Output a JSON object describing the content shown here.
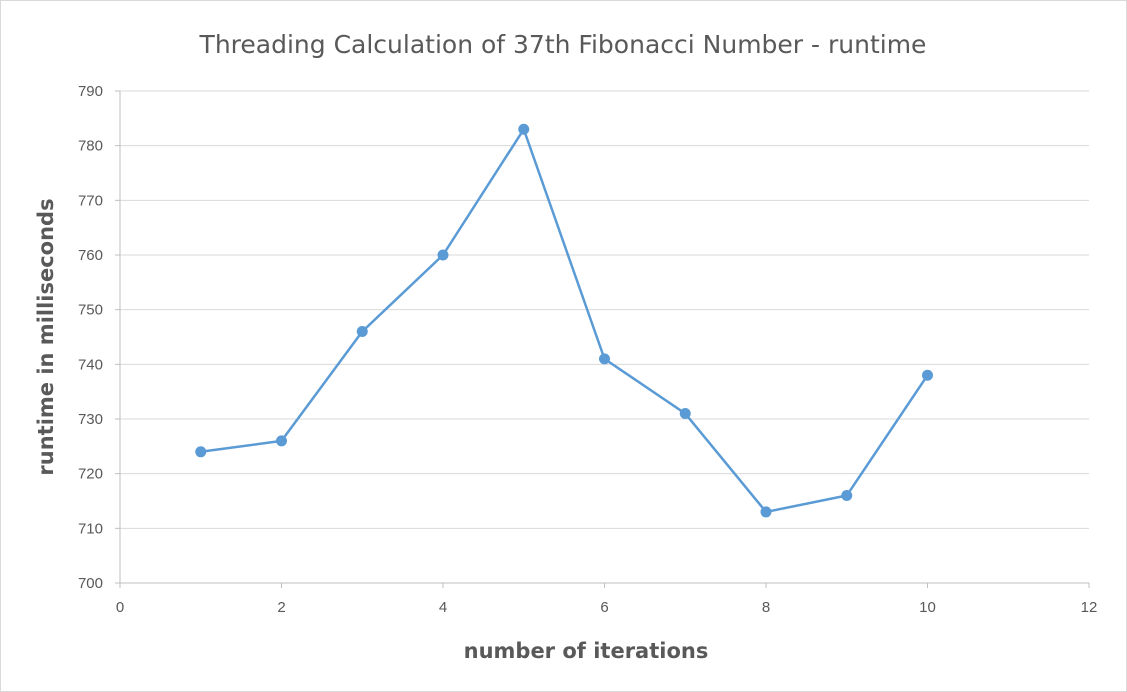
{
  "chart_data": {
    "type": "scatter",
    "title": "Threading Calculation  of 37th Fibonacci Number  - runtime",
    "xlabel": "number of iterations",
    "ylabel": "runtime in milliseconds",
    "xlim": [
      0,
      12
    ],
    "ylim": [
      700,
      790
    ],
    "xticks": [
      0,
      2,
      4,
      6,
      8,
      10,
      12
    ],
    "yticks": [
      700,
      710,
      720,
      730,
      740,
      750,
      760,
      770,
      780,
      790
    ],
    "grid": true,
    "legend": "none",
    "series": [
      {
        "name": "runtime",
        "color": "#5b9bd5",
        "x": [
          1,
          2,
          3,
          4,
          5,
          6,
          7,
          8,
          9,
          10
        ],
        "y": [
          724,
          726,
          746,
          760,
          783,
          741,
          731,
          713,
          716,
          738
        ]
      }
    ]
  }
}
